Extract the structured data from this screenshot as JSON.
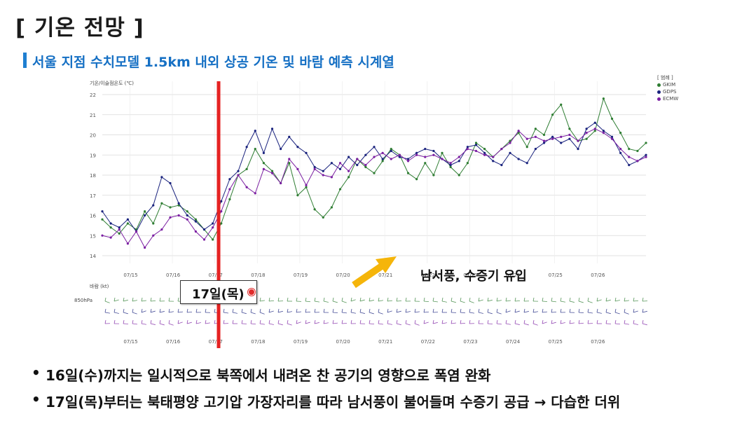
{
  "page": {
    "title": "[ 기온 전망 ]",
    "subtitle": "서울 지점 수치모델 1.5km 내외 상공 기온 및 바람 예측 시계열",
    "callout_label": "17일(목)",
    "annotation": "남서풍, 수증기 유입",
    "bullets": [
      "16일(수)까지는 일시적으로 북쪽에서 내려온 찬 공기의 영향으로 폭염 완화",
      "17일(목)부터는 북태평양 고기압 가장자리를 따라 남서풍이 불어들며 수증기 공급 → 다습한 더위"
    ],
    "colors": {
      "accent": "#1670c4",
      "marker_line": "#e52222",
      "arrow": "#f5b50a"
    }
  },
  "chart_data": {
    "type": "line",
    "ylabel": "기온/이슬점온도 (℃)",
    "legend_title": "[ 범례 ]",
    "legend_position": "top-right",
    "ylim": [
      14,
      22
    ],
    "yticks": [
      14,
      15,
      16,
      17,
      18,
      19,
      20,
      21,
      22
    ],
    "xlim": [
      0,
      12.8
    ],
    "xticks": [
      "07/15",
      "07/16",
      "07/17",
      "07/18",
      "07/19",
      "07/20",
      "07/21",
      "07/22",
      "07/23",
      "07/24",
      "07/25",
      "07/26"
    ],
    "series": [
      {
        "name": "GKIM",
        "color": "#2e7d32",
        "x": [
          0,
          0.2,
          0.4,
          0.6,
          0.8,
          1.0,
          1.2,
          1.4,
          1.6,
          1.8,
          2.0,
          2.2,
          2.4,
          2.6,
          2.8,
          3.0,
          3.2,
          3.4,
          3.6,
          3.8,
          4.0,
          4.2,
          4.4,
          4.6,
          4.8,
          5.0,
          5.2,
          5.4,
          5.6,
          5.8,
          6.0,
          6.2,
          6.4,
          6.6,
          6.8,
          7.0,
          7.2,
          7.4,
          7.6,
          7.8,
          8.0,
          8.2,
          8.4,
          8.6,
          8.8,
          9.0,
          9.2,
          9.4,
          9.6,
          9.8,
          10.0,
          10.2,
          10.4,
          10.6,
          10.8,
          11.0,
          11.2,
          11.4,
          11.6,
          11.8,
          12.0,
          12.2,
          12.4,
          12.6,
          12.8
        ],
        "y": [
          15.8,
          15.4,
          15.1,
          15.6,
          15.3,
          16.2,
          15.6,
          16.6,
          16.4,
          16.5,
          16.2,
          15.8,
          15.3,
          14.8,
          15.6,
          16.8,
          18.0,
          18.3,
          19.3,
          18.6,
          18.2,
          17.6,
          18.6,
          17.0,
          17.4,
          16.3,
          15.9,
          16.4,
          17.3,
          17.9,
          18.8,
          18.4,
          18.1,
          18.7,
          19.3,
          19.0,
          18.1,
          17.8,
          18.6,
          18.0,
          19.1,
          18.4,
          18.0,
          18.6,
          19.6,
          19.3,
          18.9,
          19.3,
          19.7,
          20.1,
          19.4,
          20.3,
          20.0,
          21.0,
          21.5,
          20.3,
          19.7,
          19.8,
          20.2,
          21.8,
          20.8,
          20.1,
          19.3,
          19.2,
          19.6
        ]
      },
      {
        "name": "GDPS",
        "color": "#1a237e",
        "x": [
          0,
          0.2,
          0.4,
          0.6,
          0.8,
          1.0,
          1.2,
          1.4,
          1.6,
          1.8,
          2.0,
          2.2,
          2.4,
          2.6,
          2.8,
          3.0,
          3.2,
          3.4,
          3.6,
          3.8,
          4.0,
          4.2,
          4.4,
          4.6,
          4.8,
          5.0,
          5.2,
          5.4,
          5.6,
          5.8,
          6.0,
          6.2,
          6.4,
          6.6,
          6.8,
          7.0,
          7.2,
          7.4,
          7.6,
          7.8,
          8.0,
          8.2,
          8.4,
          8.6,
          8.8,
          9.0,
          9.2,
          9.4,
          9.6,
          9.8,
          10.0,
          10.2,
          10.4,
          10.6,
          10.8,
          11.0,
          11.2,
          11.4,
          11.6,
          11.8,
          12.0,
          12.2,
          12.4,
          12.6,
          12.8
        ],
        "y": [
          16.2,
          15.6,
          15.4,
          15.8,
          15.2,
          16.0,
          16.5,
          17.9,
          17.6,
          16.6,
          16.0,
          15.7,
          15.3,
          15.6,
          16.7,
          17.8,
          18.2,
          19.4,
          20.2,
          19.1,
          20.3,
          19.3,
          19.9,
          19.4,
          19.1,
          18.4,
          18.2,
          18.6,
          18.3,
          18.9,
          18.5,
          19.0,
          19.4,
          18.8,
          19.2,
          18.9,
          18.8,
          19.1,
          19.3,
          19.2,
          18.8,
          18.5,
          18.7,
          19.4,
          19.5,
          19.1,
          18.7,
          18.5,
          19.1,
          18.8,
          18.6,
          19.3,
          19.6,
          19.9,
          19.6,
          19.8,
          19.3,
          20.3,
          20.6,
          20.2,
          19.9,
          19.1,
          18.5,
          18.7,
          19.0
        ]
      },
      {
        "name": "ECMW",
        "color": "#7b1fa2",
        "x": [
          0,
          0.2,
          0.4,
          0.6,
          0.8,
          1.0,
          1.2,
          1.4,
          1.6,
          1.8,
          2.0,
          2.2,
          2.4,
          2.6,
          2.8,
          3.0,
          3.2,
          3.4,
          3.6,
          3.8,
          4.0,
          4.2,
          4.4,
          4.6,
          4.8,
          5.0,
          5.2,
          5.4,
          5.6,
          5.8,
          6.0,
          6.2,
          6.4,
          6.6,
          6.8,
          7.0,
          7.2,
          7.4,
          7.6,
          7.8,
          8.0,
          8.2,
          8.4,
          8.6,
          8.8,
          9.0,
          9.2,
          9.4,
          9.6,
          9.8,
          10.0,
          10.2,
          10.4,
          10.6,
          10.8,
          11.0,
          11.2,
          11.4,
          11.6,
          11.8,
          12.0,
          12.2,
          12.4,
          12.6,
          12.8
        ],
        "y": [
          15.0,
          14.9,
          15.3,
          14.6,
          15.2,
          14.4,
          15.0,
          15.3,
          15.9,
          16.0,
          15.8,
          15.2,
          14.8,
          15.4,
          16.2,
          17.3,
          18.0,
          17.4,
          17.1,
          18.3,
          18.1,
          17.6,
          18.8,
          18.3,
          17.5,
          18.3,
          18.0,
          17.9,
          18.6,
          18.2,
          18.8,
          18.5,
          18.9,
          19.1,
          18.8,
          19.0,
          18.7,
          19.0,
          18.9,
          19.0,
          18.8,
          18.6,
          18.9,
          19.3,
          19.2,
          19.0,
          18.9,
          19.3,
          19.6,
          20.2,
          19.8,
          19.9,
          19.7,
          19.8,
          19.9,
          20.0,
          19.7,
          20.1,
          20.3,
          20.1,
          19.8,
          19.3,
          18.9,
          18.7,
          18.9
        ]
      }
    ],
    "wind_panel": {
      "label": "바람 (kt)",
      "level": "850hPa"
    },
    "highlight": {
      "x": 2.65,
      "label": "17일(목)"
    }
  }
}
